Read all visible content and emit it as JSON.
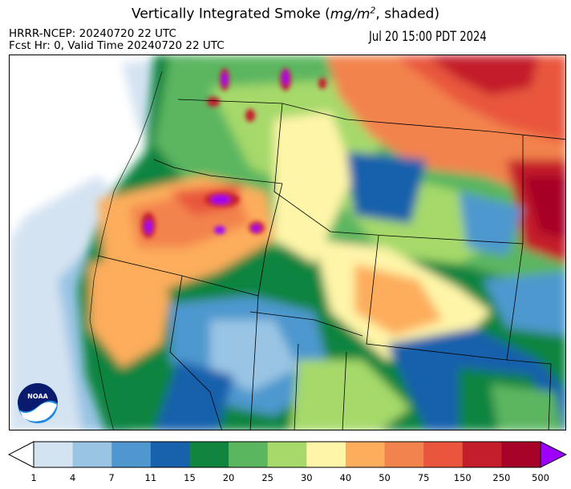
{
  "title": {
    "prefix": "Vertically Integrated Smoke (",
    "unit_base": "mg/m",
    "unit_exp": "2",
    "suffix": ", shaded)"
  },
  "model_run": "HRRR-NCEP: 20240720 22 UTC",
  "forecast": "Fcst Hr: 0, Valid Time 20240720 22 UTC",
  "valid_local": "Jul 20 15:00 PDT 2024",
  "logo": {
    "text": "NOAA",
    "colors": {
      "navy": "#0a1a6e",
      "blue": "#1e8ae0"
    }
  },
  "colorbar": {
    "ticks": [
      "1",
      "4",
      "7",
      "11",
      "15",
      "20",
      "25",
      "30",
      "40",
      "50",
      "75",
      "150",
      "250",
      "500"
    ],
    "colors": [
      "#d4e3f2",
      "#99c4e4",
      "#4e98cf",
      "#1861ac",
      "#11843f",
      "#5bb660",
      "#a6d96a",
      "#fff5a8",
      "#fdad5c",
      "#f3834e",
      "#e9563d",
      "#c41e2c",
      "#a70228"
    ],
    "under_color": "#ffffff",
    "over_color": "#9e00ff"
  }
}
